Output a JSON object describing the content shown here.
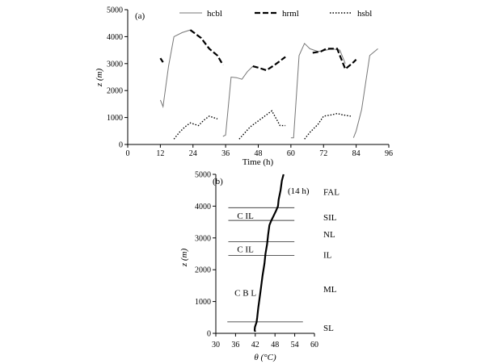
{
  "chart_data": [
    {
      "type": "line",
      "panel_label": "(a)",
      "xlabel": "Time (h)",
      "ylabel": "z (m)",
      "xlim": [
        0,
        96
      ],
      "ylim": [
        0,
        5000
      ],
      "xticks": [
        "0",
        "12",
        "24",
        "36",
        "48",
        "60",
        "72",
        "84",
        "96"
      ],
      "yticks": [
        "0",
        "1000",
        "2000",
        "3000",
        "4000",
        "5000"
      ],
      "legend_position": "top",
      "series": [
        {
          "name": "hcbl",
          "style": "solid",
          "segments": [
            [
              [
                12,
                1650
              ],
              [
                13,
                1400
              ],
              [
                15,
                2900
              ],
              [
                17,
                4000
              ],
              [
                20,
                4150
              ],
              [
                23,
                4250
              ]
            ],
            [
              [
                35,
                300
              ],
              [
                36,
                350
              ],
              [
                38,
                2500
              ],
              [
                40,
                2480
              ],
              [
                42,
                2420
              ],
              [
                44,
                2700
              ],
              [
                46,
                2900
              ]
            ],
            [
              [
                60,
                250
              ],
              [
                61,
                250
              ],
              [
                63,
                3300
              ],
              [
                65,
                3750
              ],
              [
                67,
                3550
              ],
              [
                70,
                3450
              ],
              [
                73,
                3500
              ],
              [
                75,
                3550
              ],
              [
                78,
                3500
              ],
              [
                80,
                3000
              ]
            ],
            [
              [
                83,
                250
              ],
              [
                84,
                500
              ],
              [
                86,
                1300
              ],
              [
                89,
                3300
              ],
              [
                92,
                3550
              ]
            ]
          ]
        },
        {
          "name": "hrml",
          "style": "dashed",
          "segments": [
            [
              [
                12,
                3200
              ],
              [
                13,
                3050
              ]
            ],
            [
              [
                23,
                4250
              ],
              [
                25,
                4100
              ],
              [
                27,
                3950
              ],
              [
                30,
                3550
              ],
              [
                33,
                3300
              ],
              [
                35,
                2950
              ]
            ],
            [
              [
                46,
                2900
              ],
              [
                48,
                2850
              ],
              [
                51,
                2750
              ],
              [
                54,
                2950
              ],
              [
                58,
                3250
              ]
            ],
            [
              [
                68,
                3400
              ],
              [
                71,
                3450
              ],
              [
                73,
                3550
              ],
              [
                77,
                3550
              ],
              [
                80,
                2800
              ],
              [
                83,
                3050
              ],
              [
                84,
                3150
              ]
            ]
          ]
        },
        {
          "name": "hsbl",
          "style": "dotted",
          "segments": [
            [
              [
                17,
                200
              ],
              [
                19,
                450
              ],
              [
                21,
                650
              ],
              [
                23,
                800
              ],
              [
                26,
                700
              ],
              [
                28,
                900
              ],
              [
                30,
                1050
              ],
              [
                33,
                950
              ]
            ],
            [
              [
                41,
                200
              ],
              [
                45,
                650
              ],
              [
                49,
                950
              ],
              [
                53,
                1250
              ],
              [
                56,
                700
              ],
              [
                58,
                700
              ]
            ],
            [
              [
                65,
                200
              ],
              [
                67,
                450
              ],
              [
                70,
                750
              ],
              [
                72,
                1050
              ],
              [
                75,
                1100
              ],
              [
                77,
                1150
              ],
              [
                79,
                1100
              ],
              [
                82,
                1050
              ]
            ]
          ]
        }
      ]
    },
    {
      "type": "line",
      "panel_label": "(b)",
      "xlabel": "θ (°C)",
      "ylabel": "z (m)",
      "xlim": [
        30,
        60
      ],
      "ylim": [
        0,
        5000
      ],
      "xticks": [
        "30",
        "36",
        "42",
        "48",
        "54",
        "60"
      ],
      "yticks": [
        "0",
        "1000",
        "2000",
        "3000",
        "4000",
        "5000"
      ],
      "curve_label": "(14 h)",
      "profile": [
        [
          42.0,
          50
        ],
        [
          41.8,
          100
        ],
        [
          41.9,
          200
        ],
        [
          42.4,
          350
        ],
        [
          42.6,
          500
        ],
        [
          42.9,
          800
        ],
        [
          43.3,
          1100
        ],
        [
          43.7,
          1400
        ],
        [
          44.2,
          1800
        ],
        [
          44.8,
          2200
        ],
        [
          45.1,
          2500
        ],
        [
          45.6,
          2800
        ],
        [
          45.9,
          3100
        ],
        [
          46.3,
          3400
        ],
        [
          46.9,
          3550
        ],
        [
          47.6,
          3700
        ],
        [
          48.3,
          3850
        ],
        [
          48.9,
          4000
        ],
        [
          49.1,
          4200
        ],
        [
          49.7,
          4500
        ],
        [
          50.1,
          4800
        ],
        [
          50.6,
          5000
        ]
      ],
      "hlines": [
        {
          "z": 3950,
          "x_from": 33.8,
          "x_to": 53.9
        },
        {
          "z": 3550,
          "x_from": 33.8,
          "x_to": 53.9
        },
        {
          "z": 2880,
          "x_from": 33.8,
          "x_to": 53.9
        },
        {
          "z": 2450,
          "x_from": 33.8,
          "x_to": 53.9
        },
        {
          "z": 360,
          "x_from": 33.5,
          "x_to": 56.5
        }
      ],
      "layer_labels": [
        {
          "text": "C IL",
          "x": 39.0,
          "z": 3700
        },
        {
          "text": "C IL",
          "x": 39.0,
          "z": 2650
        },
        {
          "text": "C B L",
          "x": 39.0,
          "z": 1280
        }
      ],
      "side_labels": [
        {
          "text": "FAL",
          "z": 4450
        },
        {
          "text": "SIL",
          "z": 3650
        },
        {
          "text": "NL",
          "z": 3120
        },
        {
          "text": "IL",
          "z": 2480
        },
        {
          "text": "ML",
          "z": 1400
        },
        {
          "text": "SL",
          "z": 180
        }
      ]
    }
  ]
}
